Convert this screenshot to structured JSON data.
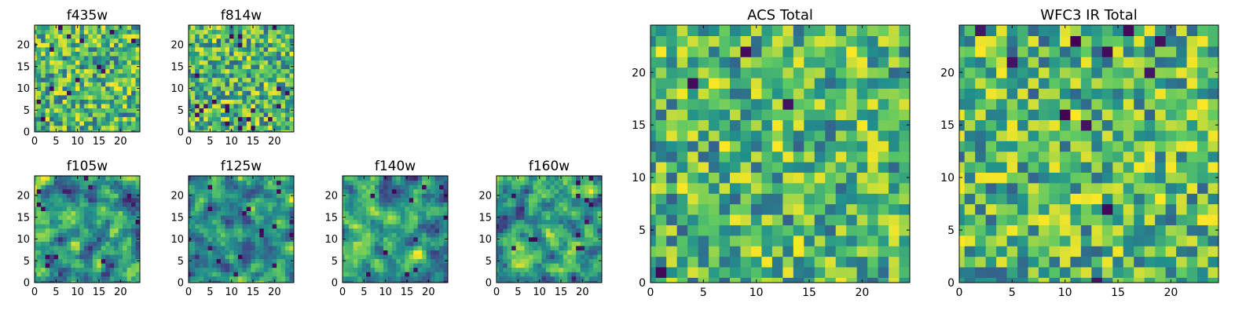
{
  "figure": {
    "background": "#ffffff"
  },
  "colormap": {
    "name": "viridis",
    "stops": [
      "#440154",
      "#3b528b",
      "#21918c",
      "#5ec962",
      "#fde725"
    ]
  },
  "chart_data": [
    {
      "id": "f435w",
      "type": "heatmap",
      "title": "f435w",
      "grid": "25x25",
      "xlim": [
        0,
        24
      ],
      "ylim": [
        0,
        24
      ],
      "xticks": [
        "0",
        "5",
        "10",
        "15",
        "20"
      ],
      "yticks": [
        "0",
        "5",
        "10",
        "15",
        "20"
      ],
      "seed": 11,
      "smooth": 0,
      "dark_fraction": 0.03
    },
    {
      "id": "f814w",
      "type": "heatmap",
      "title": "f814w",
      "grid": "25x25",
      "xlim": [
        0,
        24
      ],
      "ylim": [
        0,
        24
      ],
      "xticks": [
        "0",
        "5",
        "10",
        "15",
        "20"
      ],
      "yticks": [
        "0",
        "5",
        "10",
        "15",
        "20"
      ],
      "seed": 23,
      "smooth": 0,
      "dark_fraction": 0.03
    },
    {
      "id": "f105w",
      "type": "heatmap",
      "title": "f105w",
      "grid": "25x25",
      "xlim": [
        0,
        24
      ],
      "ylim": [
        0,
        24
      ],
      "xticks": [
        "0",
        "5",
        "10",
        "15",
        "20"
      ],
      "yticks": [
        "0",
        "5",
        "10",
        "15",
        "20"
      ],
      "seed": 37,
      "smooth": 1,
      "dark_fraction": 0.02
    },
    {
      "id": "f125w",
      "type": "heatmap",
      "title": "f125w",
      "grid": "25x25",
      "xlim": [
        0,
        24
      ],
      "ylim": [
        0,
        24
      ],
      "xticks": [
        "0",
        "5",
        "10",
        "15",
        "20"
      ],
      "yticks": [
        "0",
        "5",
        "10",
        "15",
        "20"
      ],
      "seed": 41,
      "smooth": 1,
      "dark_fraction": 0.02
    },
    {
      "id": "f140w",
      "type": "heatmap",
      "title": "f140w",
      "grid": "25x25",
      "xlim": [
        0,
        24
      ],
      "ylim": [
        0,
        24
      ],
      "xticks": [
        "0",
        "5",
        "10",
        "15",
        "20"
      ],
      "yticks": [
        "0",
        "5",
        "10",
        "15",
        "20"
      ],
      "seed": 53,
      "smooth": 1,
      "dark_fraction": 0.02
    },
    {
      "id": "f160w",
      "type": "heatmap",
      "title": "f160w",
      "grid": "25x25",
      "xlim": [
        0,
        24
      ],
      "ylim": [
        0,
        24
      ],
      "xticks": [
        "0",
        "5",
        "10",
        "15",
        "20"
      ],
      "yticks": [
        "0",
        "5",
        "10",
        "15",
        "20"
      ],
      "seed": 67,
      "smooth": 1,
      "dark_fraction": 0.02
    },
    {
      "id": "acs_total",
      "type": "heatmap",
      "title": "ACS Total",
      "grid": "25x25",
      "xlim": [
        0,
        24
      ],
      "ylim": [
        0,
        24
      ],
      "xticks": [
        "0",
        "5",
        "10",
        "15",
        "20"
      ],
      "yticks": [
        "0",
        "5",
        "10",
        "15",
        "20"
      ],
      "seed": 79,
      "smooth": 0,
      "dark_fraction": 0.015
    },
    {
      "id": "wfc3_ir_total",
      "type": "heatmap",
      "title": "WFC3 IR Total",
      "grid": "25x25",
      "xlim": [
        0,
        24
      ],
      "ylim": [
        0,
        24
      ],
      "xticks": [
        "0",
        "5",
        "10",
        "15",
        "20"
      ],
      "yticks": [
        "0",
        "5",
        "10",
        "15",
        "20"
      ],
      "seed": 97,
      "smooth": 0,
      "dark_fraction": 0.02
    }
  ]
}
